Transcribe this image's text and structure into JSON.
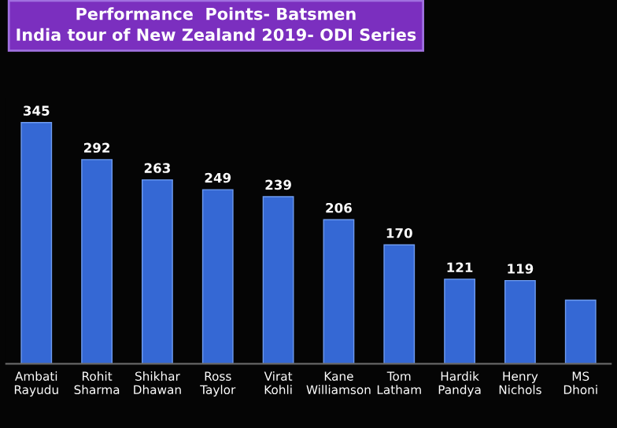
{
  "chart_data": {
    "type": "bar",
    "title": "Performance  Points- Batsmen\nIndia tour of New Zealand 2019- ODI Series",
    "categories": [
      "Ambati\nRayudu",
      "Rohit\nSharma",
      "Shikhar\nDhawan",
      "Ross\nTaylor",
      "Virat\nKohli",
      "Kane\nWilliamson",
      "Tom\nLatham",
      "Hardik\nPandya",
      "Henry\nNichols",
      "MS\nDhoni"
    ],
    "values": [
      345,
      292,
      263,
      249,
      239,
      206,
      170,
      121,
      119,
      91
    ],
    "value_labels": [
      "345",
      "292",
      "263",
      "249",
      "239",
      "206",
      "170",
      "121",
      "119",
      null
    ],
    "color": "#3568d4",
    "grid": false,
    "legend": false
  }
}
